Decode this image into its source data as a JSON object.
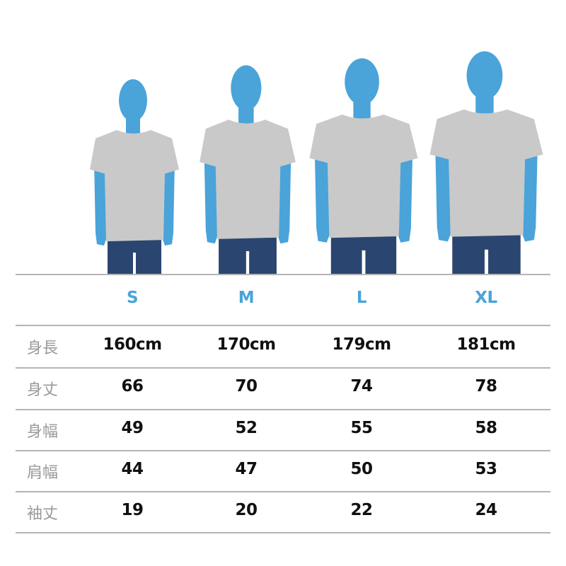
{
  "colors": {
    "accent": "#4aa3d9",
    "shirt": "#c9c9c9",
    "jeans": "#2a4670",
    "label": "#9a9a9a",
    "rule": "#b4b4b4"
  },
  "sizes": [
    "S",
    "M",
    "L",
    "XL"
  ],
  "rows": [
    {
      "label": "身長",
      "values": [
        "160cm",
        "170cm",
        "179cm",
        "181cm"
      ]
    },
    {
      "label": "身丈",
      "values": [
        "66",
        "70",
        "74",
        "78"
      ]
    },
    {
      "label": "身幅",
      "values": [
        "49",
        "52",
        "55",
        "58"
      ]
    },
    {
      "label": "肩幅",
      "values": [
        "44",
        "47",
        "50",
        "53"
      ]
    },
    {
      "label": "袖丈",
      "values": [
        "19",
        "20",
        "22",
        "24"
      ]
    }
  ]
}
